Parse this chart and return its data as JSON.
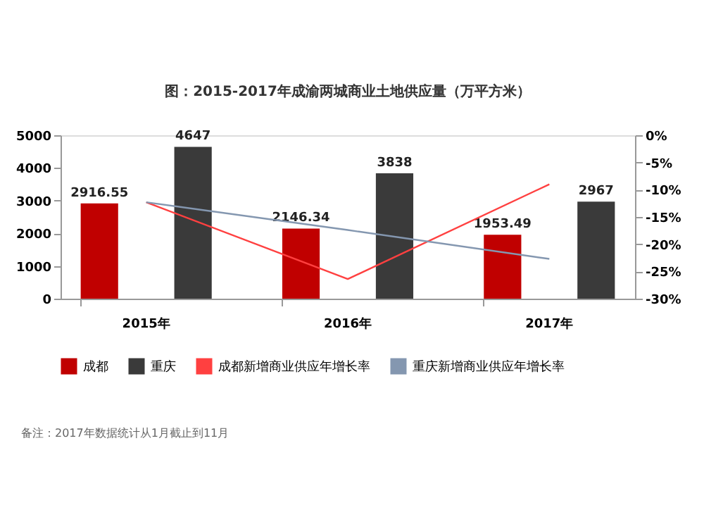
{
  "chart_data": {
    "type": "bar",
    "title": "图：2015-2017年成渝两城商业土地供应量（万平方米）",
    "categories": [
      "2015年",
      "2016年",
      "2017年"
    ],
    "series": [
      {
        "name": "成都",
        "color": "#c00000",
        "values": [
          2916.55,
          2146.34,
          1953.49
        ],
        "value_labels": [
          "2916.55",
          "2146.34",
          "1953.49"
        ]
      },
      {
        "name": "重庆",
        "color": "#3a3a3a",
        "values": [
          4647,
          3838,
          2967
        ],
        "value_labels": [
          "4647",
          "3838",
          "2967"
        ]
      },
      {
        "name": "成都新增商业供应年增长率",
        "type": "line",
        "axis": "y2",
        "color": "#ff4040",
        "values": [
          -12.3,
          -26.4,
          -9.0
        ]
      },
      {
        "name": "重庆新增商业供应年增长率",
        "type": "line",
        "axis": "y2",
        "color": "#8497b0",
        "values": [
          -12.3,
          -17.4,
          -22.7
        ]
      }
    ],
    "ylim": [
      0,
      5000
    ],
    "yticks": [
      0,
      1000,
      2000,
      3000,
      4000,
      5000
    ],
    "y2lim": [
      -30,
      0
    ],
    "y2ticks": [
      {
        "value": 0,
        "label": "0%"
      },
      {
        "value": -5,
        "label": "-5%"
      },
      {
        "value": -10,
        "label": "-10%"
      },
      {
        "value": -15,
        "label": "-15%"
      },
      {
        "value": -20,
        "label": "-20%"
      },
      {
        "value": -25,
        "label": "-25%"
      },
      {
        "value": -30,
        "label": "-30%"
      }
    ],
    "legend": "bottom",
    "grid": false,
    "annotations": [
      "备注：2017年数据统计从1月截止到11月"
    ]
  }
}
